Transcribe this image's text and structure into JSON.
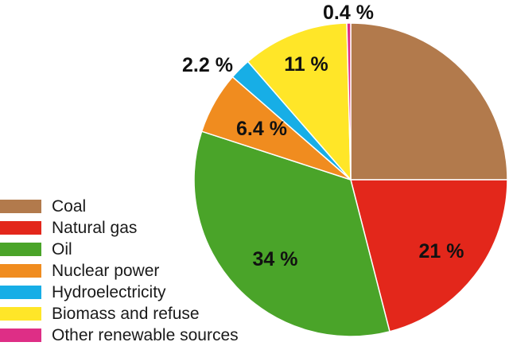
{
  "chart_data": {
    "type": "pie",
    "title": "",
    "start": "12 o'clock",
    "direction": "clockwise",
    "slices": [
      {
        "label": "Coal",
        "value": 25,
        "value_label": "",
        "color": "#b27a4c"
      },
      {
        "label": "Natural gas",
        "value": 21,
        "value_label": "21 %",
        "color": "#e3271b"
      },
      {
        "label": "Oil",
        "value": 34,
        "value_label": "34 %",
        "color": "#4aa429"
      },
      {
        "label": "Nuclear power",
        "value": 6.4,
        "value_label": "6.4 %",
        "color": "#f08c1f"
      },
      {
        "label": "Hydroelectricity",
        "value": 2.2,
        "value_label": "2.2 %",
        "color": "#17aee6"
      },
      {
        "label": "Biomass and refuse",
        "value": 11,
        "value_label": "11 %",
        "color": "#ffe628"
      },
      {
        "label": "Other renewable sources",
        "value": 0.4,
        "value_label": "0.4 %",
        "color": "#de2e86"
      }
    ],
    "legend_placement": "bottom-left"
  }
}
